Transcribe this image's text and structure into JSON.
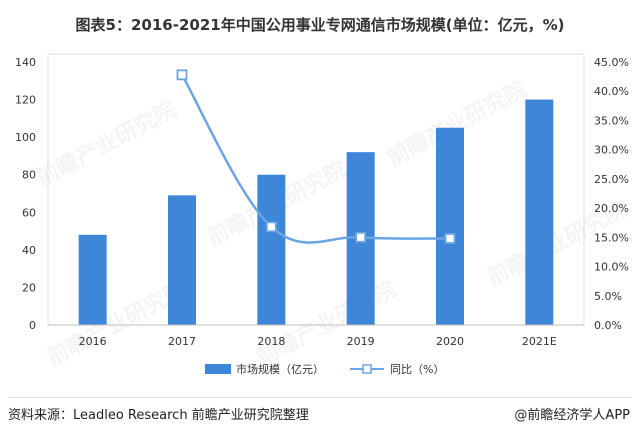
{
  "title": "图表5：2016-2021年中国公用事业专网通信市场规模(单位：亿元，%)",
  "footer": {
    "source": "资料来源：Leadleo Research 前瞻产业研究院整理",
    "brand": "@前瞻经济学人APP"
  },
  "watermark": "前瞻产业研究院",
  "colors": {
    "bar": "#3d86d8",
    "line": "#6aa5e6",
    "marker_fill": "#ffffff",
    "axis_text": "#333333",
    "grid": "#e6e6e6"
  },
  "chart_data": {
    "type": "bar",
    "categories": [
      "2016",
      "2017",
      "2018",
      "2019",
      "2020",
      "2021E"
    ],
    "series": [
      {
        "name": "市场规模（亿元）",
        "type": "bar",
        "axis": "left",
        "values": [
          48,
          69,
          80,
          92,
          105,
          120
        ]
      },
      {
        "name": "同比（%）",
        "type": "line",
        "axis": "right",
        "values": [
          null,
          42.8,
          16.8,
          15.0,
          14.8,
          null
        ]
      }
    ],
    "y_left": {
      "min": 0,
      "max": 140,
      "ticks": [
        "0",
        "20",
        "40",
        "60",
        "80",
        "100",
        "120",
        "140"
      ]
    },
    "y_right": {
      "min": 0,
      "max": 45,
      "ticks": [
        "0.0%",
        "5.0%",
        "10.0%",
        "15.0%",
        "20.0%",
        "25.0%",
        "30.0%",
        "35.0%",
        "40.0%",
        "45.0%"
      ]
    },
    "legend_position": "bottom"
  }
}
